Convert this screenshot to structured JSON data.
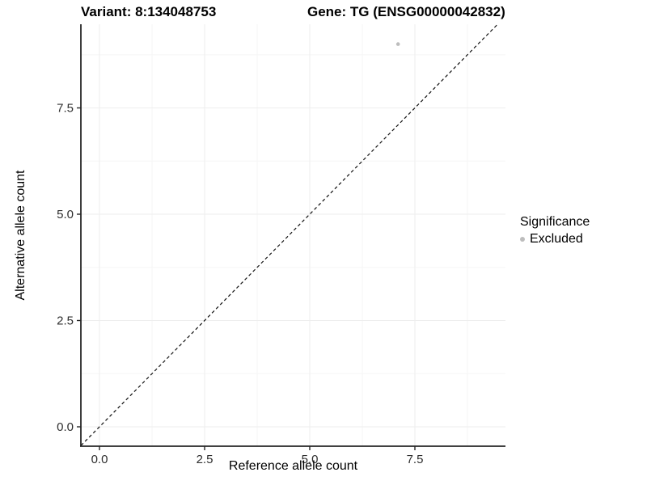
{
  "chart_data": {
    "type": "scatter",
    "title_left": "Variant: 8:134048753",
    "title_right": "Gene: TG (ENSG00000042832)",
    "xlabel": "Reference allele count",
    "ylabel": "Alternative allele count",
    "xlim": [
      -0.44,
      9.65
    ],
    "ylim": [
      -0.46,
      9.47
    ],
    "x_ticks": {
      "values": [
        0,
        2.5,
        5,
        7.5
      ],
      "labels": [
        "0.0",
        "2.5",
        "5.0",
        "7.5"
      ]
    },
    "y_ticks": {
      "values": [
        0,
        2.5,
        5,
        7.5
      ],
      "labels": [
        "0.0",
        "2.5",
        "5.0",
        "7.5"
      ]
    },
    "x_minor": [
      1.25,
      3.75,
      6.25,
      8.75
    ],
    "y_minor": [
      1.25,
      3.75,
      6.25,
      8.75
    ],
    "grid": {
      "major": true,
      "minor": true
    },
    "points": [
      {
        "x": 7.1,
        "y": 9.0,
        "series": "Excluded"
      }
    ],
    "identity_line": {
      "slope": 1,
      "intercept": 0,
      "style": "dashed"
    },
    "legend": {
      "title": "Significance",
      "position": "right",
      "items": [
        {
          "label": "Excluded",
          "color": "#bdbdbd"
        }
      ]
    },
    "colors": {
      "point": "#bdbdbd",
      "dashed_line": "#111111",
      "grid_major": "#eeeeee",
      "grid_minor": "#f6f6f6",
      "axis_line": "#262626",
      "tick_label": "#2e2e2e"
    }
  }
}
